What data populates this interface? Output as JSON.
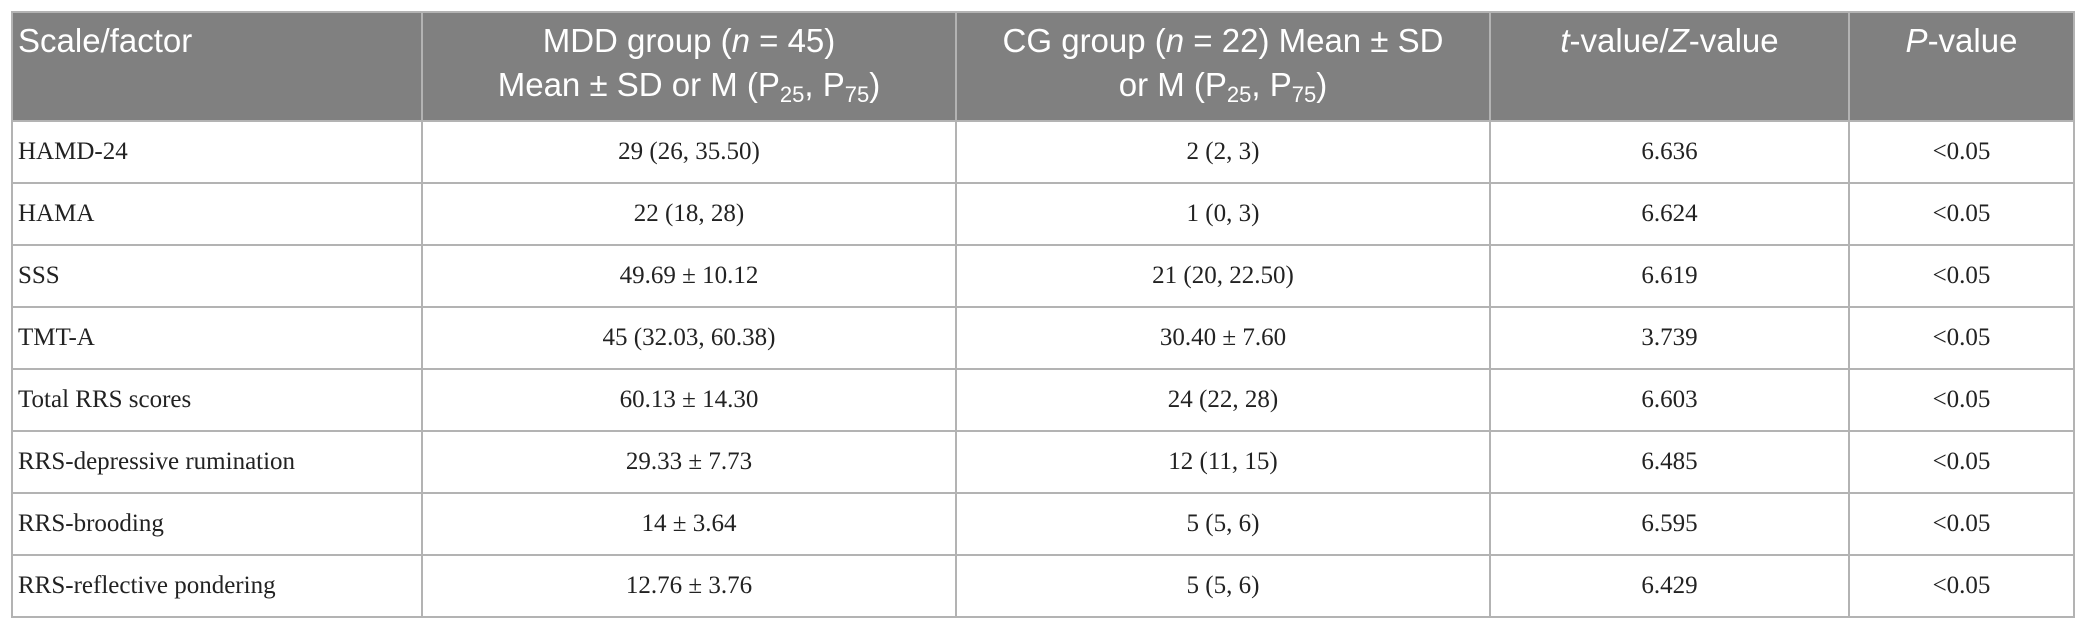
{
  "header": {
    "col1": "Scale/factor",
    "col2": {
      "line1_a": "MDD group (",
      "line1_n": "n",
      "line1_b": " = 45)",
      "line2_a": "Mean ± SD or M (P",
      "sub1": "25",
      "line2_b": ", P",
      "sub2": "75",
      "line2_c": ")"
    },
    "col3": {
      "line1_a": "CG group (",
      "line1_n": "n",
      "line1_b": " = 22) Mean ± SD",
      "line2_a": "or M (P",
      "sub1": "25",
      "line2_b": ", P",
      "sub2": "75",
      "line2_c": ")"
    },
    "col4": {
      "t": "t",
      "mid": "-value/",
      "z": "Z",
      "end": "-value"
    },
    "col5": {
      "p": "P",
      "end": "-value"
    }
  },
  "rows": [
    {
      "factor": "HAMD-24",
      "mdd": "29 (26, 35.50)",
      "cg": "2 (2, 3)",
      "t": "6.636",
      "p": "<0.05"
    },
    {
      "factor": "HAMA",
      "mdd": "22 (18, 28)",
      "cg": "1 (0, 3)",
      "t": "6.624",
      "p": "<0.05"
    },
    {
      "factor": "SSS",
      "mdd": "49.69 ± 10.12",
      "cg": "21 (20, 22.50)",
      "t": "6.619",
      "p": "<0.05"
    },
    {
      "factor": "TMT-A",
      "mdd": "45 (32.03, 60.38)",
      "cg": "30.40 ± 7.60",
      "t": "3.739",
      "p": "<0.05"
    },
    {
      "factor": "Total RRS scores",
      "mdd": "60.13 ± 14.30",
      "cg": "24 (22, 28)",
      "t": "6.603",
      "p": "<0.05"
    },
    {
      "factor": "RRS-depressive rumination",
      "mdd": "29.33 ± 7.73",
      "cg": "12 (11, 15)",
      "t": "6.485",
      "p": "<0.05"
    },
    {
      "factor": "RRS-brooding",
      "mdd": "14 ± 3.64",
      "cg": "5 (5, 6)",
      "t": "6.595",
      "p": "<0.05"
    },
    {
      "factor": "RRS-reflective pondering",
      "mdd": "12.76 ± 3.76",
      "cg": "5 (5, 6)",
      "t": "6.429",
      "p": "<0.05"
    }
  ]
}
